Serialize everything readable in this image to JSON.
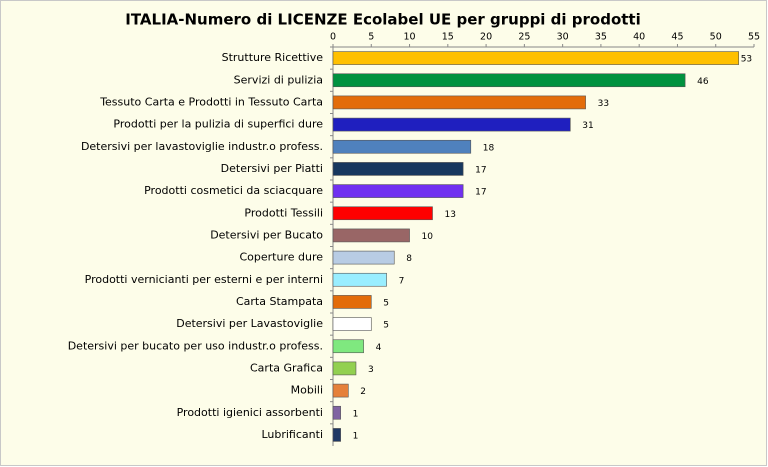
{
  "chart_data": {
    "type": "bar",
    "orientation": "horizontal",
    "title": "ITALIA-Numero di LICENZE  Ecolabel UE per gruppi di prodotti",
    "categories": [
      "Strutture Ricettive",
      "Servizi di pulizia",
      "Tessuto Carta e Prodotti in Tessuto Carta",
      "Prodotti per la pulizia di superfici dure",
      "Detersivi per lavastoviglie industr.o profess.",
      "Detersivi per Piatti",
      "Prodotti cosmetici da sciacquare",
      "Prodotti Tessili",
      "Detersivi per Bucato",
      "Coperture dure",
      "Prodotti vernicianti per esterni e per interni",
      "Carta Stampata",
      "Detersivi per Lavastoviglie",
      "Detersivi per bucato per uso industr.o profess.",
      "Carta Grafica",
      "Mobili",
      "Prodotti igienici assorbenti",
      "Lubrificanti"
    ],
    "values": [
      53,
      46,
      33,
      31,
      18,
      17,
      17,
      13,
      10,
      8,
      7,
      5,
      5,
      4,
      3,
      2,
      1,
      1
    ],
    "colors": [
      "#ffc000",
      "#00923f",
      "#e36c0a",
      "#1f1fbf",
      "#4f81bd",
      "#17375e",
      "#7030f0",
      "#ff0000",
      "#996666",
      "#b8cce4",
      "#99eeff",
      "#e36c0a",
      "#ffffff",
      "#7fe87f",
      "#92d050",
      "#e5803a",
      "#8064a2",
      "#1f3864"
    ],
    "xlim": [
      0,
      55
    ],
    "xticks": [
      0,
      5,
      10,
      15,
      20,
      25,
      30,
      35,
      40,
      45,
      50,
      55
    ]
  }
}
